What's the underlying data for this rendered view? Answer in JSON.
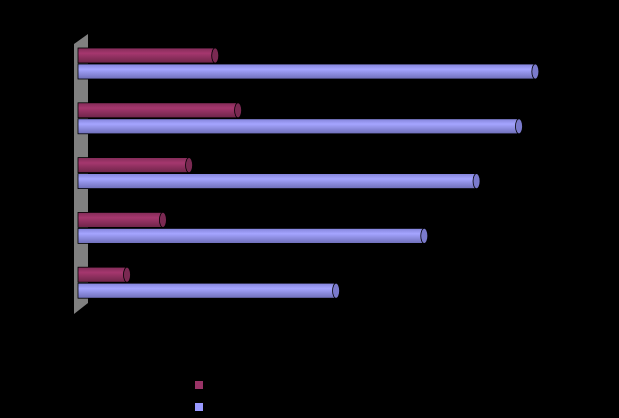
{
  "chart_data": {
    "type": "bar",
    "orientation": "horizontal",
    "style": "3d-cylinder",
    "categories": [
      "",
      "",
      "",
      "",
      ""
    ],
    "series": [
      {
        "values": [
          4.2,
          4.9,
          3.4,
          2.6,
          1.5
        ],
        "color": "#993366"
      },
      {
        "values": [
          14.0,
          13.5,
          12.2,
          10.6,
          7.9
        ],
        "color": "#9999FF"
      }
    ],
    "xlim": [
      0,
      15
    ],
    "grid": false,
    "legend": "bottom",
    "title": "",
    "xlabel": "",
    "ylabel": ""
  }
}
